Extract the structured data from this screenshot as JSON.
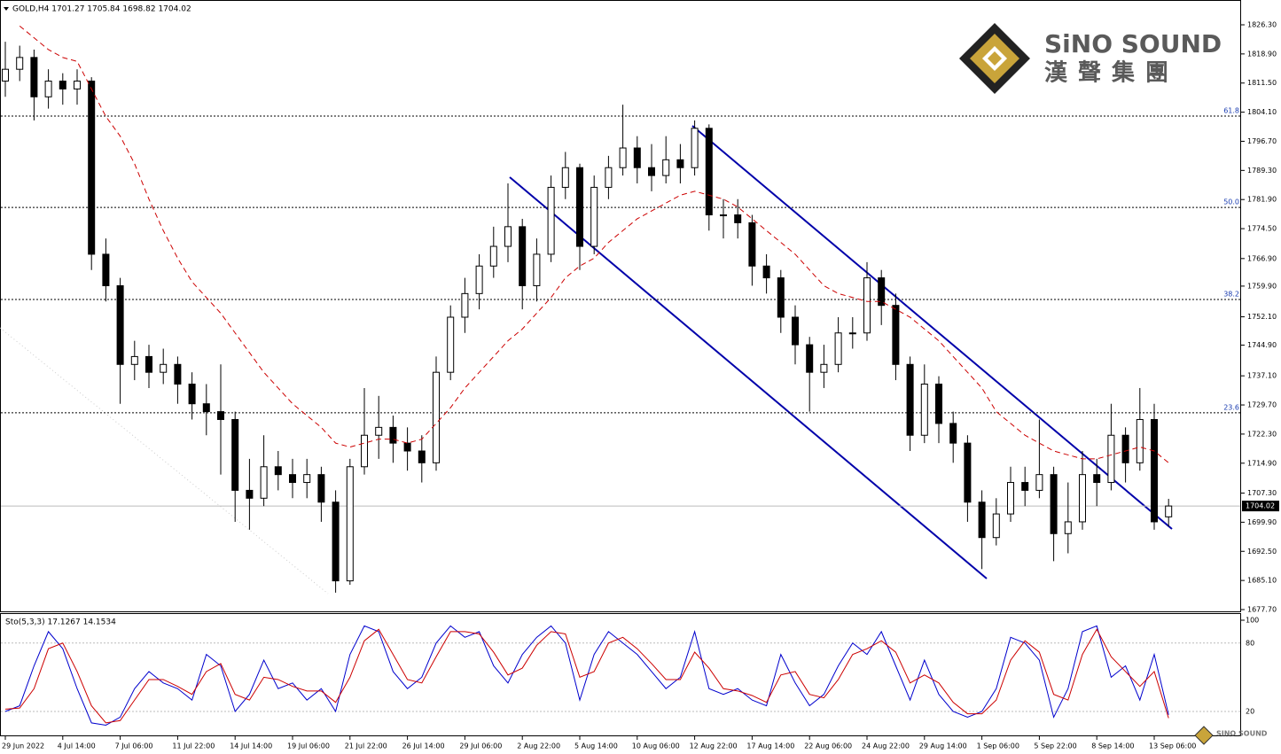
{
  "chart_data": {
    "type": "candlestick",
    "title": "GOLD,H4 1701.27 1705.84 1698.82 1704.02",
    "categories": [
      "29 Jun 2022",
      null,
      null,
      null,
      "4 Jul 14:00",
      null,
      null,
      null,
      "7 Jul 06:00",
      null,
      null,
      null,
      "11 Jul 22:00",
      null,
      null,
      null,
      "14 Jul 14:00",
      null,
      null,
      null,
      "19 Jul 06:00",
      null,
      null,
      null,
      "21 Jul 22:00",
      null,
      null,
      null,
      "26 Jul 14:00",
      null,
      null,
      null,
      "29 Jul 06:00",
      null,
      null,
      null,
      "2 Aug 22:00",
      null,
      null,
      null,
      "5 Aug 14:00",
      null,
      null,
      null,
      "10 Aug 06:00",
      null,
      null,
      null,
      "12 Aug 22:00",
      null,
      null,
      null,
      "17 Aug 14:00",
      null,
      null,
      null,
      "22 Aug 06:00",
      null,
      null,
      null,
      "24 Aug 22:00",
      null,
      null,
      null,
      "29 Aug 14:00",
      null,
      null,
      null,
      "1 Sep 06:00",
      null,
      null,
      null,
      "5 Sep 22:00",
      null,
      null,
      null,
      "8 Sep 14:00",
      null,
      null,
      null,
      "13 Sep 06:00",
      null
    ],
    "candles": [
      [
        1812,
        1822,
        1808,
        1815
      ],
      [
        1815,
        1821,
        1812,
        1818
      ],
      [
        1818,
        1820,
        1802,
        1808
      ],
      [
        1808,
        1815,
        1805,
        1812
      ],
      [
        1812,
        1814,
        1806,
        1810
      ],
      [
        1810,
        1815,
        1806,
        1812
      ],
      [
        1812,
        1813,
        1764,
        1768
      ],
      [
        1768,
        1772,
        1756,
        1760
      ],
      [
        1760,
        1762,
        1730,
        1740
      ],
      [
        1740,
        1746,
        1736,
        1742
      ],
      [
        1742,
        1745,
        1734,
        1738
      ],
      [
        1738,
        1744,
        1735,
        1740
      ],
      [
        1740,
        1742,
        1730,
        1735
      ],
      [
        1735,
        1738,
        1726,
        1730
      ],
      [
        1730,
        1735,
        1722,
        1728
      ],
      [
        1728,
        1740,
        1712,
        1726
      ],
      [
        1726,
        1728,
        1700,
        1708
      ],
      [
        1708,
        1716,
        1698,
        1706
      ],
      [
        1706,
        1722,
        1704,
        1714
      ],
      [
        1714,
        1718,
        1708,
        1712
      ],
      [
        1712,
        1716,
        1706,
        1710
      ],
      [
        1710,
        1716,
        1706,
        1712
      ],
      [
        1712,
        1714,
        1700,
        1705
      ],
      [
        1705,
        1708,
        1682,
        1685
      ],
      [
        1685,
        1716,
        1684,
        1714
      ],
      [
        1714,
        1734,
        1712,
        1722
      ],
      [
        1722,
        1732,
        1716,
        1724
      ],
      [
        1724,
        1727,
        1715,
        1720
      ],
      [
        1720,
        1724,
        1713,
        1718
      ],
      [
        1718,
        1722,
        1710,
        1715
      ],
      [
        1715,
        1742,
        1713,
        1738
      ],
      [
        1738,
        1755,
        1736,
        1752
      ],
      [
        1752,
        1762,
        1748,
        1758
      ],
      [
        1758,
        1768,
        1754,
        1765
      ],
      [
        1765,
        1775,
        1762,
        1770
      ],
      [
        1770,
        1786,
        1766,
        1775
      ],
      [
        1775,
        1777,
        1754,
        1760
      ],
      [
        1760,
        1772,
        1756,
        1768
      ],
      [
        1768,
        1788,
        1766,
        1785
      ],
      [
        1785,
        1794,
        1782,
        1790
      ],
      [
        1790,
        1791,
        1764,
        1770
      ],
      [
        1770,
        1788,
        1768,
        1785
      ],
      [
        1785,
        1793,
        1782,
        1790
      ],
      [
        1790,
        1806,
        1788,
        1795
      ],
      [
        1795,
        1798,
        1786,
        1790
      ],
      [
        1790,
        1796,
        1784,
        1788
      ],
      [
        1788,
        1798,
        1786,
        1792
      ],
      [
        1792,
        1796,
        1786,
        1790
      ],
      [
        1790,
        1802,
        1788,
        1800
      ],
      [
        1800,
        1801,
        1774,
        1778
      ],
      [
        1778,
        1782,
        1772,
        1778
      ],
      [
        1778,
        1782,
        1772,
        1776
      ],
      [
        1776,
        1778,
        1760,
        1765
      ],
      [
        1765,
        1768,
        1758,
        1762
      ],
      [
        1762,
        1764,
        1748,
        1752
      ],
      [
        1752,
        1755,
        1740,
        1745
      ],
      [
        1745,
        1747,
        1728,
        1738
      ],
      [
        1738,
        1745,
        1734,
        1740
      ],
      [
        1740,
        1752,
        1738,
        1748
      ],
      [
        1748,
        1752,
        1744,
        1748
      ],
      [
        1748,
        1766,
        1746,
        1762
      ],
      [
        1762,
        1764,
        1750,
        1755
      ],
      [
        1755,
        1758,
        1736,
        1740
      ],
      [
        1740,
        1742,
        1718,
        1722
      ],
      [
        1722,
        1740,
        1720,
        1735
      ],
      [
        1735,
        1737,
        1720,
        1725
      ],
      [
        1725,
        1728,
        1715,
        1720
      ],
      [
        1720,
        1722,
        1700,
        1705
      ],
      [
        1705,
        1708,
        1688,
        1696
      ],
      [
        1696,
        1706,
        1694,
        1702
      ],
      [
        1702,
        1714,
        1700,
        1710
      ],
      [
        1710,
        1714,
        1704,
        1708
      ],
      [
        1708,
        1726,
        1706,
        1712
      ],
      [
        1712,
        1714,
        1690,
        1697
      ],
      [
        1697,
        1710,
        1692,
        1700
      ],
      [
        1700,
        1718,
        1698,
        1712
      ],
      [
        1712,
        1716,
        1704,
        1710
      ],
      [
        1710,
        1730,
        1708,
        1722
      ],
      [
        1722,
        1724,
        1710,
        1715
      ],
      [
        1715,
        1734,
        1713,
        1726
      ],
      [
        1726,
        1730,
        1698,
        1700
      ],
      [
        1701.27,
        1705.84,
        1698.82,
        1704.02
      ]
    ],
    "ylim": [
      1677.7,
      1826.3
    ],
    "yticks": [
      {
        "value": 1826.3,
        "label": "1826.30"
      },
      {
        "value": 1818.9,
        "label": "1818.90"
      },
      {
        "value": 1811.5,
        "label": "1811.50"
      },
      {
        "value": 1804.1,
        "label": "1804.10"
      },
      {
        "value": 1796.7,
        "label": "1796.70"
      },
      {
        "value": 1789.3,
        "label": "1789.30"
      },
      {
        "value": 1781.9,
        "label": "1781.90"
      },
      {
        "value": 1774.5,
        "label": "1774.50"
      },
      {
        "value": 1766.9,
        "label": "1766.90"
      },
      {
        "value": 1759.9,
        "label": "1759.90"
      },
      {
        "value": 1752.1,
        "label": "1752.10"
      },
      {
        "value": 1744.9,
        "label": "1744.90"
      },
      {
        "value": 1737.1,
        "label": "1737.10"
      },
      {
        "value": 1729.7,
        "label": "1729.70"
      },
      {
        "value": 1722.3,
        "label": "1722.30"
      },
      {
        "value": 1714.9,
        "label": "1714.90"
      },
      {
        "value": 1707.3,
        "label": "1707.30"
      },
      {
        "value": 1699.9,
        "label": "1699.90"
      },
      {
        "value": 1692.5,
        "label": "1692.50"
      },
      {
        "value": 1685.1,
        "label": "1685.10"
      },
      {
        "value": 1677.7,
        "label": "1677.70"
      }
    ],
    "grid": false,
    "up_color": "#ffffff",
    "down_color": "#000000",
    "ma": {
      "color": "#cc0000",
      "values": [
        null,
        1826,
        1823,
        1820,
        1818,
        1817,
        1810,
        1803,
        1798,
        1791,
        1782,
        1774,
        1767,
        1761,
        1757,
        1753,
        1748,
        1743,
        1738,
        1734,
        1730,
        1727,
        1724,
        1720,
        1719,
        1720,
        1721,
        1721,
        1720,
        1721,
        1725,
        1729,
        1734,
        1738,
        1742,
        1746,
        1749,
        1753,
        1757,
        1762,
        1765,
        1767,
        1771,
        1774,
        1777,
        1779,
        1781,
        1783,
        1784,
        1783,
        1782,
        1780,
        1777,
        1774,
        1771,
        1768,
        1764,
        1760,
        1758,
        1757,
        1756,
        1756,
        1754,
        1752,
        1749,
        1746,
        1742,
        1738,
        1734,
        1728,
        1725,
        1722,
        1720,
        1718,
        1717,
        1716,
        1716,
        1717,
        1718,
        1719,
        1718,
        1715
      ]
    },
    "levels": [
      {
        "label": "61.8",
        "value": 1803.1
      },
      {
        "label": "50.0",
        "value": 1779.9
      },
      {
        "label": "38.2",
        "value": 1756.5
      },
      {
        "label": "23.6",
        "value": 1727.7
      }
    ],
    "last_price": 1704.02,
    "indicator": {
      "title": "Sto(5,3,3) 17.1267 14.1534",
      "ylim": [
        0,
        100
      ],
      "yticks": [
        20,
        80,
        100
      ],
      "series": [
        {
          "color": "#0000cd",
          "values": [
            20,
            25,
            60,
            90,
            75,
            40,
            10,
            8,
            15,
            40,
            55,
            45,
            40,
            30,
            70,
            60,
            20,
            35,
            65,
            40,
            45,
            30,
            40,
            20,
            70,
            95,
            90,
            55,
            40,
            50,
            80,
            95,
            85,
            90,
            60,
            45,
            70,
            85,
            95,
            80,
            30,
            70,
            90,
            80,
            70,
            55,
            40,
            50,
            90,
            40,
            35,
            40,
            30,
            25,
            70,
            45,
            25,
            35,
            60,
            80,
            70,
            90,
            60,
            30,
            65,
            35,
            20,
            15,
            20,
            40,
            85,
            80,
            65,
            15,
            40,
            90,
            95,
            50,
            60,
            30,
            70,
            17.1267
          ]
        },
        {
          "color": "#cc0000",
          "values": [
            22,
            23,
            40,
            75,
            80,
            55,
            25,
            10,
            12,
            30,
            48,
            48,
            42,
            35,
            55,
            62,
            35,
            30,
            50,
            48,
            42,
            38,
            38,
            28,
            50,
            82,
            92,
            70,
            48,
            45,
            68,
            90,
            90,
            88,
            72,
            52,
            58,
            78,
            90,
            88,
            50,
            55,
            80,
            85,
            75,
            62,
            48,
            48,
            72,
            58,
            40,
            38,
            34,
            28,
            52,
            55,
            35,
            32,
            48,
            70,
            75,
            82,
            72,
            45,
            52,
            45,
            28,
            18,
            18,
            30,
            65,
            82,
            72,
            35,
            30,
            70,
            92,
            68,
            55,
            42,
            55,
            14.1534
          ]
        }
      ]
    },
    "brand": {
      "name": "SiNO SOUND",
      "name_cn": "漢聲集團",
      "footer": "SINO SOUND"
    }
  }
}
